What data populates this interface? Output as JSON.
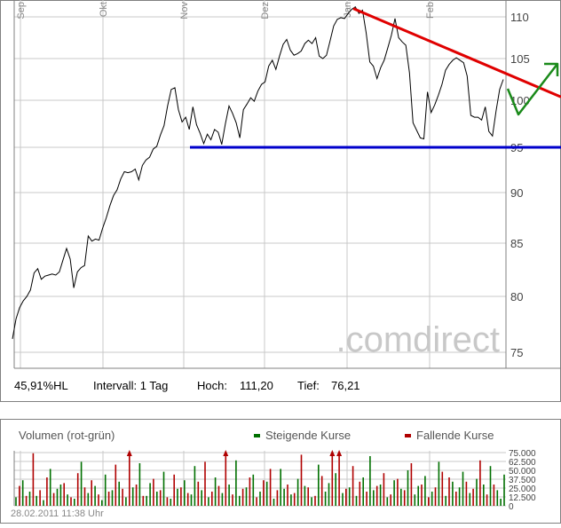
{
  "chart_data": [
    {
      "type": "line",
      "title": "",
      "xlabel": "",
      "ylabel": "",
      "ylim": [
        73.5,
        113
      ],
      "y_ticks": [
        "110",
        "105",
        "100",
        "95",
        "90",
        "85",
        "80",
        "75"
      ],
      "y_tick_values": [
        110,
        105,
        100,
        95,
        90,
        85,
        80,
        75
      ],
      "x_month_labels": [
        "Sep",
        "Okt",
        "Nov",
        "Dez",
        "Jan",
        "Feb"
      ],
      "grid": true,
      "x_unit": "trading days",
      "series": [
        {
          "values": [
            76.2,
            78.0,
            79.0,
            79.6,
            80.0,
            80.6,
            82.2,
            82.6,
            81.6,
            81.9,
            82.0,
            82.1,
            82.0,
            82.3,
            83.4,
            84.5,
            83.5,
            80.8,
            82.3,
            82.7,
            82.9,
            85.7,
            85.2,
            85.4,
            85.3,
            86.5,
            87.5,
            88.7,
            89.7,
            90.3,
            91.5,
            92.3,
            92.2,
            92.3,
            92.6,
            91.4,
            93.0,
            93.6,
            93.9,
            94.8,
            95.1,
            96.3,
            97.3,
            99.4,
            101.3,
            101.5,
            99.0,
            97.7,
            98.2,
            96.9,
            99.3,
            97.4,
            96.5,
            95.4,
            96.4,
            95.8,
            96.9,
            96.6,
            95.3,
            97.5,
            99.4,
            98.6,
            97.6,
            96.0,
            99.0,
            99.6,
            100.3,
            99.9,
            101.1,
            101.9,
            102.2,
            104.1,
            104.8,
            103.7,
            105.3,
            106.7,
            107.3,
            106.0,
            105.4,
            105.6,
            105.9,
            106.8,
            107.2,
            106.8,
            107.5,
            105.3,
            105.0,
            105.4,
            107.1,
            108.9,
            109.7,
            109.9,
            109.8,
            110.4,
            110.9,
            111.2,
            110.4,
            110.8,
            108.1,
            104.6,
            104.1,
            102.6,
            103.9,
            104.8,
            106.3,
            107.8,
            109.8,
            107.5,
            107.0,
            106.6,
            103.3,
            97.6,
            96.8,
            96.0,
            95.9,
            101.0,
            98.7,
            99.5,
            100.6,
            101.9,
            103.6,
            104.3,
            104.8,
            105.1,
            104.8,
            104.5,
            102.9,
            98.4,
            98.2,
            98.2,
            97.9,
            99.3,
            96.7,
            96.2,
            98.9,
            101.3,
            102.5
          ]
        }
      ],
      "annotations": {
        "info": {
          "hl_pct": "45,91%HL",
          "interval": "Intervall: 1 Tag",
          "high_label": "Hoch:",
          "high_value": "111,20",
          "low_label": "Tief:",
          "low_value": "76,21"
        },
        "watermark": ".comdirect",
        "drawn_lines": [
          {
            "name": "support-line",
            "color": "#0000ff",
            "y": 95.0
          },
          {
            "name": "resistance-line",
            "color": "#ff0000"
          },
          {
            "name": "forecast-arrow",
            "color": "#008000"
          }
        ]
      }
    },
    {
      "type": "bar",
      "title": "Volumen (rot-grün)",
      "legend": [
        {
          "label": "Steigende Kurse",
          "color": "#007000"
        },
        {
          "label": "Fallende Kurse",
          "color": "#b00000"
        }
      ],
      "ylim": [
        0,
        80000
      ],
      "y_ticks": [
        "75.000",
        "62.500",
        "50.000",
        "37.500",
        "25.000",
        "12.500",
        "0"
      ],
      "y_tick_values": [
        75000,
        62500,
        50000,
        37500,
        25000,
        12500,
        0
      ],
      "timestamp": "28.02.2011 11:38 Uhr",
      "series": [
        {
          "name": "Steigende Kurse",
          "color": "#007000",
          "values": [
            12000,
            36000,
            20000,
            14000,
            8000,
            52000,
            24000,
            30000,
            16000,
            10000,
            62000,
            18000,
            28000,
            8000,
            44000,
            22000,
            34000,
            12000,
            26000,
            60000,
            14000,
            32000,
            20000,
            48000,
            10000,
            24000,
            36000,
            16000,
            56000,
            22000,
            12000,
            40000,
            18000,
            30000,
            64000,
            14000,
            26000,
            44000,
            20000,
            34000,
            10000,
            52000,
            24000,
            16000,
            38000,
            28000,
            12000,
            58000,
            20000,
            32000,
            46000,
            18000,
            26000,
            14000,
            40000,
            70000,
            22000,
            30000,
            12000,
            36000,
            24000,
            50000,
            16000,
            28000,
            42000,
            20000,
            62000,
            14000,
            34000,
            26000,
            48000,
            18000,
            38000,
            30000,
            56000,
            22000,
            10000,
            44000
          ]
        },
        {
          "name": "Fallende Kurse",
          "color": "#b00000",
          "values": [
            28000,
            14000,
            74000,
            22000,
            40000,
            18000,
            32000,
            12000,
            46000,
            26000,
            36000,
            16000,
            20000,
            58000,
            24000,
            80000,
            30000,
            14000,
            38000,
            22000,
            12000,
            44000,
            26000,
            18000,
            34000,
            62000,
            20000,
            28000,
            80000,
            16000,
            24000,
            40000,
            12000,
            36000,
            52000,
            22000,
            30000,
            18000,
            72000,
            26000,
            14000,
            42000,
            80000,
            80000,
            24000,
            56000,
            34000,
            20000,
            28000,
            46000,
            16000,
            38000,
            22000,
            60000,
            30000,
            12000,
            26000,
            48000,
            40000,
            20000,
            34000,
            24000,
            64000,
            16000,
            30000
          ]
        }
      ]
    }
  ]
}
